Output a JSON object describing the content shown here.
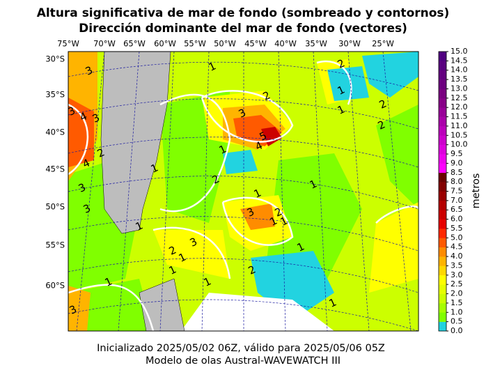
{
  "header": {
    "title_line1": "Altura significativa de mar de fondo (sombreado y contornos)",
    "title_line2": "Dirección dominante del mar de fondo (vectores)"
  },
  "map": {
    "lon_labels": [
      "75°W",
      "70°W",
      "65°W",
      "60°W",
      "55°W",
      "50°W",
      "45°W",
      "40°W",
      "35°W",
      "30°W",
      "25°W"
    ],
    "lat_labels": [
      "30°S",
      "35°S",
      "40°S",
      "45°S",
      "50°S",
      "55°S",
      "60°S"
    ],
    "contour_labels": [
      "3",
      "1",
      "2",
      "1",
      "1",
      "2",
      "3",
      "3",
      "4",
      "5",
      "4",
      "3",
      "1",
      "2",
      "1",
      "3",
      "2",
      "1",
      "1",
      "3",
      "3",
      "2",
      "1",
      "1",
      "1",
      "2",
      "3",
      "2",
      "1",
      "2",
      "1",
      "1",
      "4",
      "3",
      "1",
      "1",
      "2",
      "1"
    ]
  },
  "colorbar": {
    "label": "metros",
    "ticks": [
      "0.0",
      "0.5",
      "1.0",
      "1.5",
      "2.0",
      "2.5",
      "3.0",
      "3.5",
      "4.0",
      "4.5",
      "5.0",
      "5.5",
      "6.0",
      "6.5",
      "7.0",
      "7.5",
      "8.0",
      "8.5",
      "9.0",
      "9.5",
      "10.0",
      "10.5",
      "11.0",
      "11.5",
      "12.0",
      "12.5",
      "13.0",
      "13.5",
      "14.0",
      "14.5",
      "15.0"
    ],
    "colors": [
      "#22d3e0",
      "#80ff00",
      "#a6ff00",
      "#ccff00",
      "#e6ff00",
      "#ffff00",
      "#ffd800",
      "#ffb400",
      "#ff8c00",
      "#ff5a00",
      "#ff2800",
      "#e60000",
      "#cc0000",
      "#b40000",
      "#9a0000",
      "#820000",
      "#6a0000",
      "#ff00ff",
      "#ee00ee",
      "#dd00dd",
      "#cc00cc",
      "#bb00bb",
      "#aa00aa",
      "#990099",
      "#880088",
      "#7a0080",
      "#6e0080",
      "#640080",
      "#5a0080",
      "#500080"
    ]
  },
  "footer": {
    "line1": "Inicializado 2025/05/02 06Z, válido para 2025/05/06 05Z",
    "line2": "Modelo de olas Austral-WAVEWATCH III"
  }
}
